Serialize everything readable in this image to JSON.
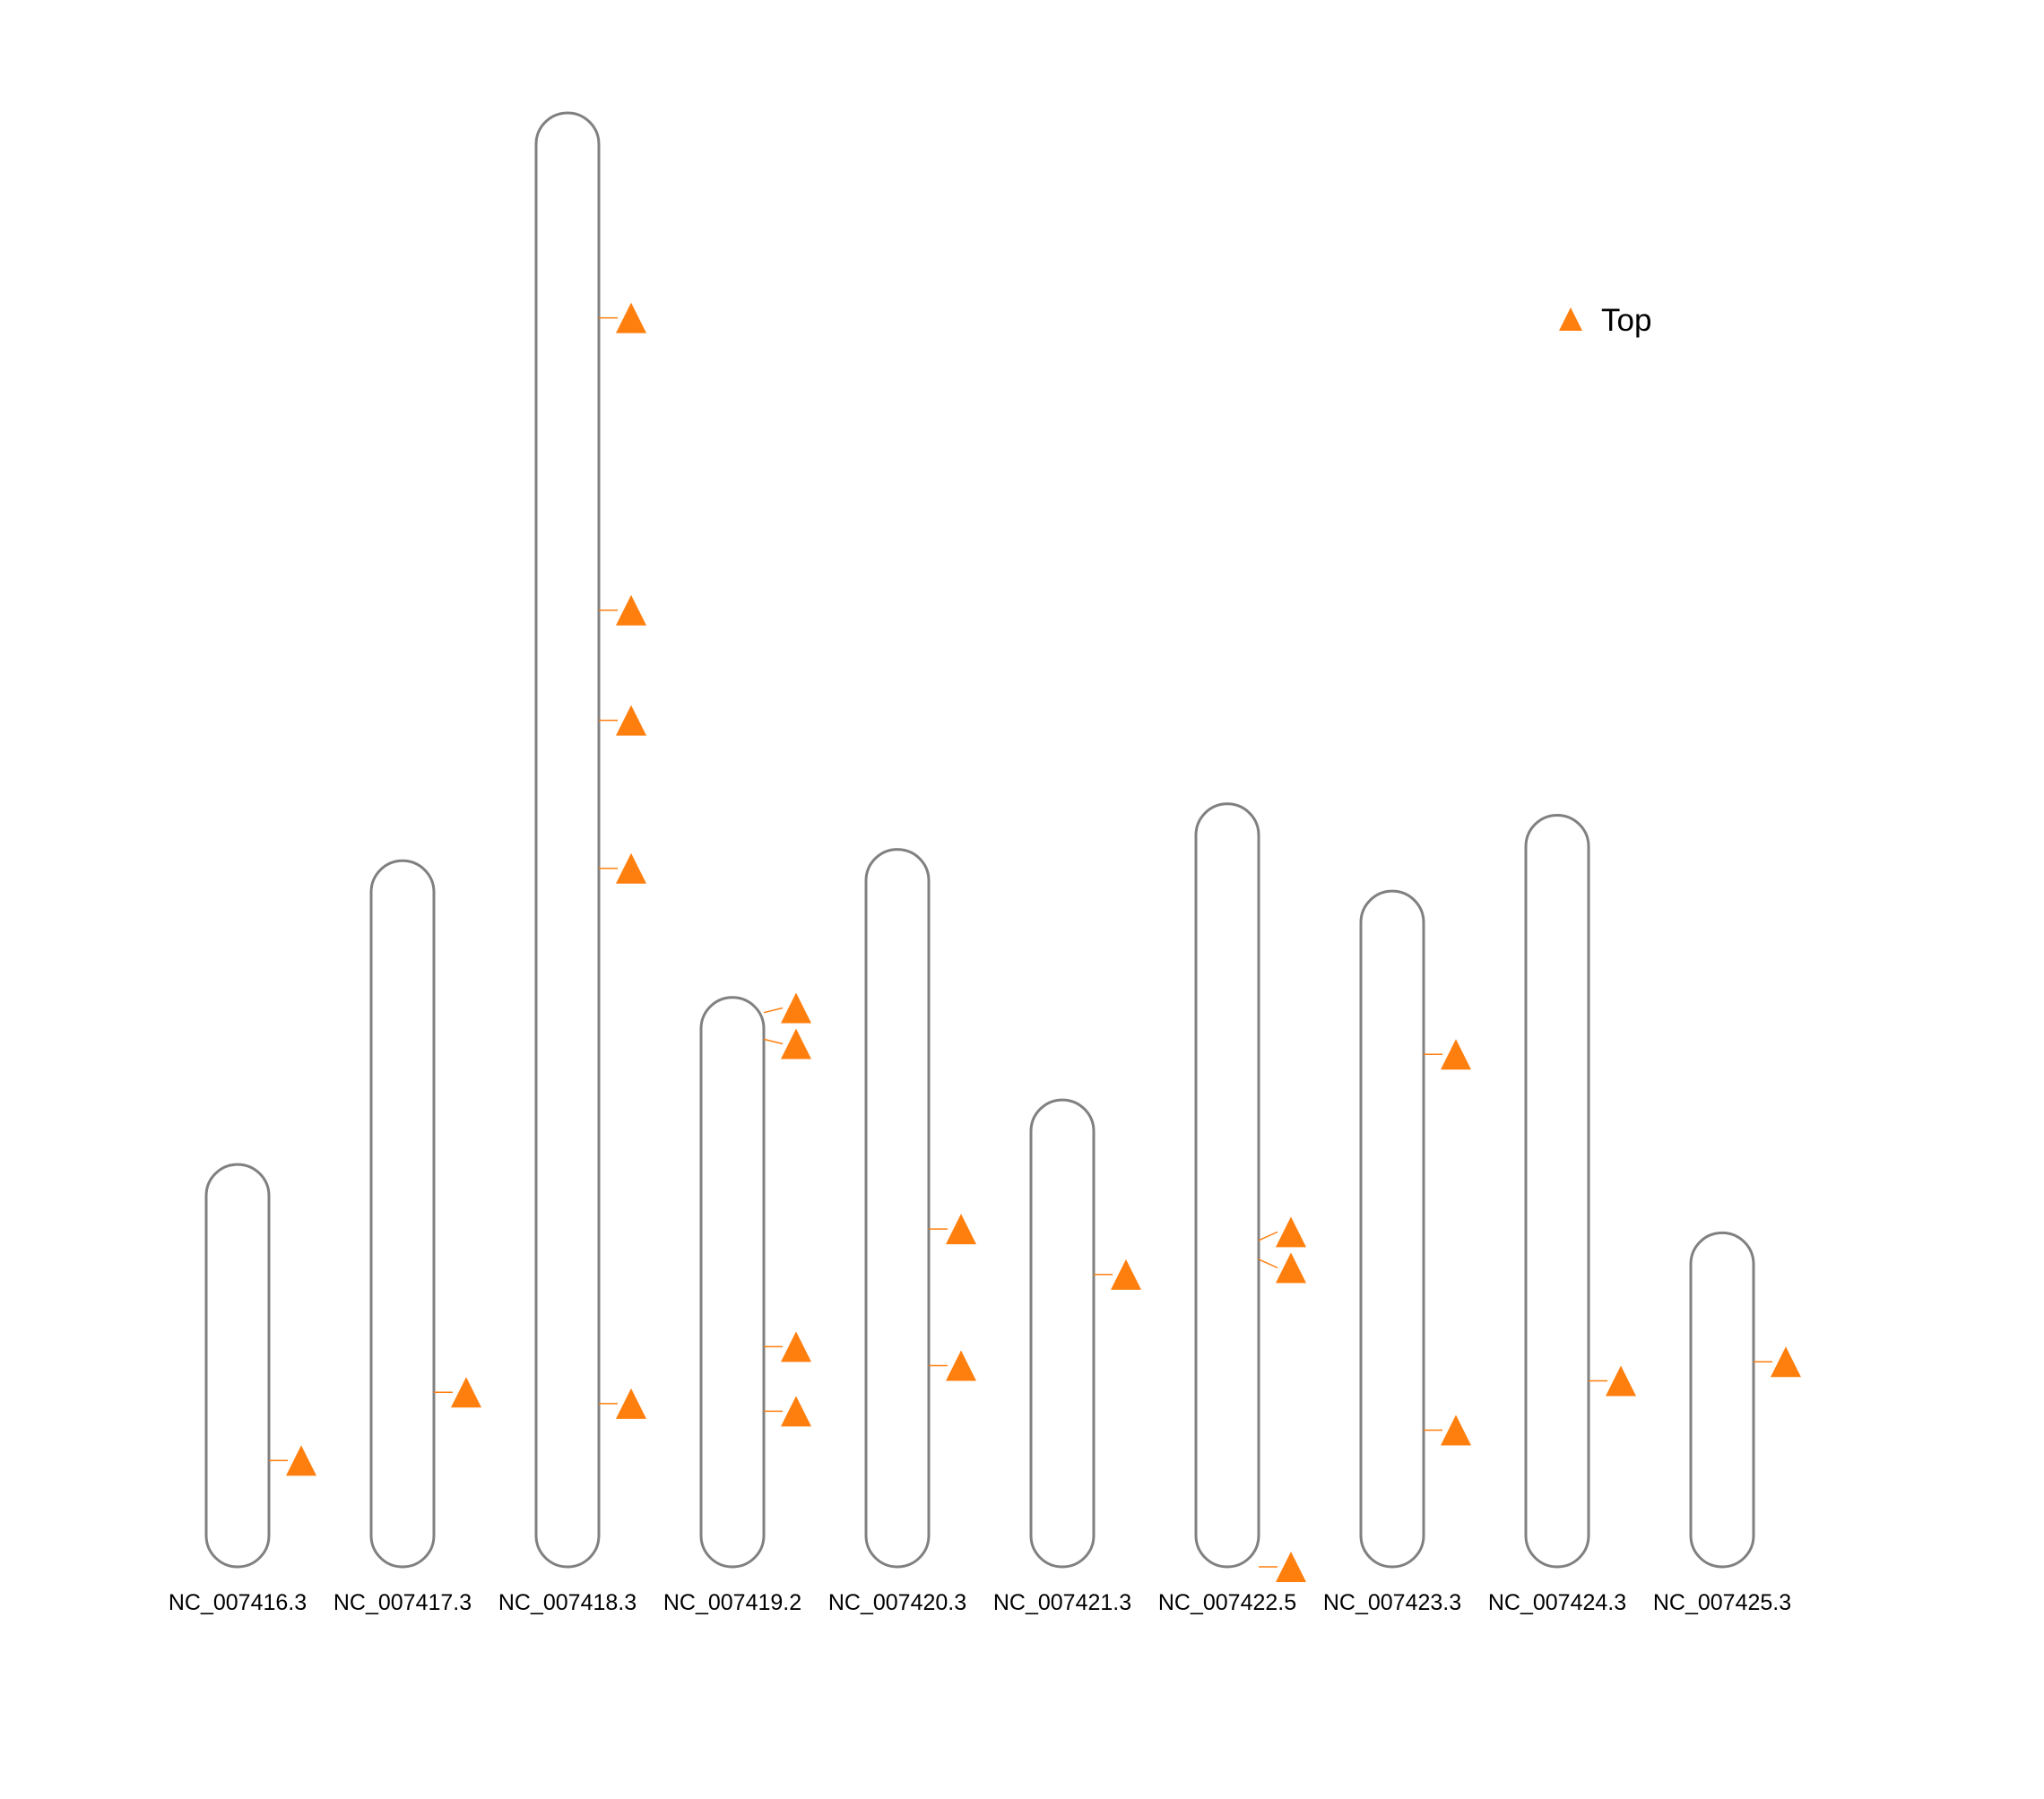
{
  "chart_data": {
    "type": "chromosome-ideogram",
    "title": "",
    "xlabel": "",
    "ylabel": "",
    "grid": false,
    "legend_position": "top-right",
    "length_units": "Mb",
    "marker_color": "#ff7f0e",
    "outline_color": "#808080",
    "series": [
      {
        "name": "Top",
        "marker": "triangle-up",
        "color": "#ff7f0e"
      }
    ],
    "chromosomes": [
      {
        "name": "NC_007416.3",
        "length": 10.6,
        "markers": [
          {
            "pos": 2.8,
            "series": "Top"
          }
        ]
      },
      {
        "name": "NC_007417.3",
        "length": 18.6,
        "markers": [
          {
            "pos": 4.6,
            "series": "Top"
          }
        ]
      },
      {
        "name": "NC_007418.3",
        "length": 38.3,
        "markers": [
          {
            "pos": 32.9,
            "series": "Top"
          },
          {
            "pos": 25.2,
            "series": "Top"
          },
          {
            "pos": 22.3,
            "series": "Top"
          },
          {
            "pos": 18.4,
            "series": "Top"
          },
          {
            "pos": 4.3,
            "series": "Top"
          }
        ]
      },
      {
        "name": "NC_007419.2",
        "length": 15.0,
        "markers": [
          {
            "pos": 14.6,
            "series": "Top"
          },
          {
            "pos": 13.9,
            "series": "Top"
          },
          {
            "pos": 5.8,
            "series": "Top"
          },
          {
            "pos": 4.1,
            "series": "Top"
          }
        ]
      },
      {
        "name": "NC_007420.3",
        "length": 18.9,
        "markers": [
          {
            "pos": 8.9,
            "series": "Top"
          },
          {
            "pos": 5.3,
            "series": "Top"
          }
        ]
      },
      {
        "name": "NC_007421.3",
        "length": 12.3,
        "markers": [
          {
            "pos": 7.7,
            "series": "Top"
          }
        ]
      },
      {
        "name": "NC_007422.5",
        "length": 20.1,
        "markers": [
          {
            "pos": 8.6,
            "series": "Top"
          },
          {
            "pos": 8.1,
            "series": "Top"
          },
          {
            "pos": 0.0,
            "series": "Top"
          }
        ]
      },
      {
        "name": "NC_007423.3",
        "length": 17.8,
        "markers": [
          {
            "pos": 13.5,
            "series": "Top"
          },
          {
            "pos": 3.6,
            "series": "Top"
          }
        ]
      },
      {
        "name": "NC_007424.3",
        "length": 19.8,
        "markers": [
          {
            "pos": 4.9,
            "series": "Top"
          }
        ]
      },
      {
        "name": "NC_007425.3",
        "length": 8.8,
        "markers": [
          {
            "pos": 5.4,
            "series": "Top"
          }
        ]
      }
    ]
  }
}
